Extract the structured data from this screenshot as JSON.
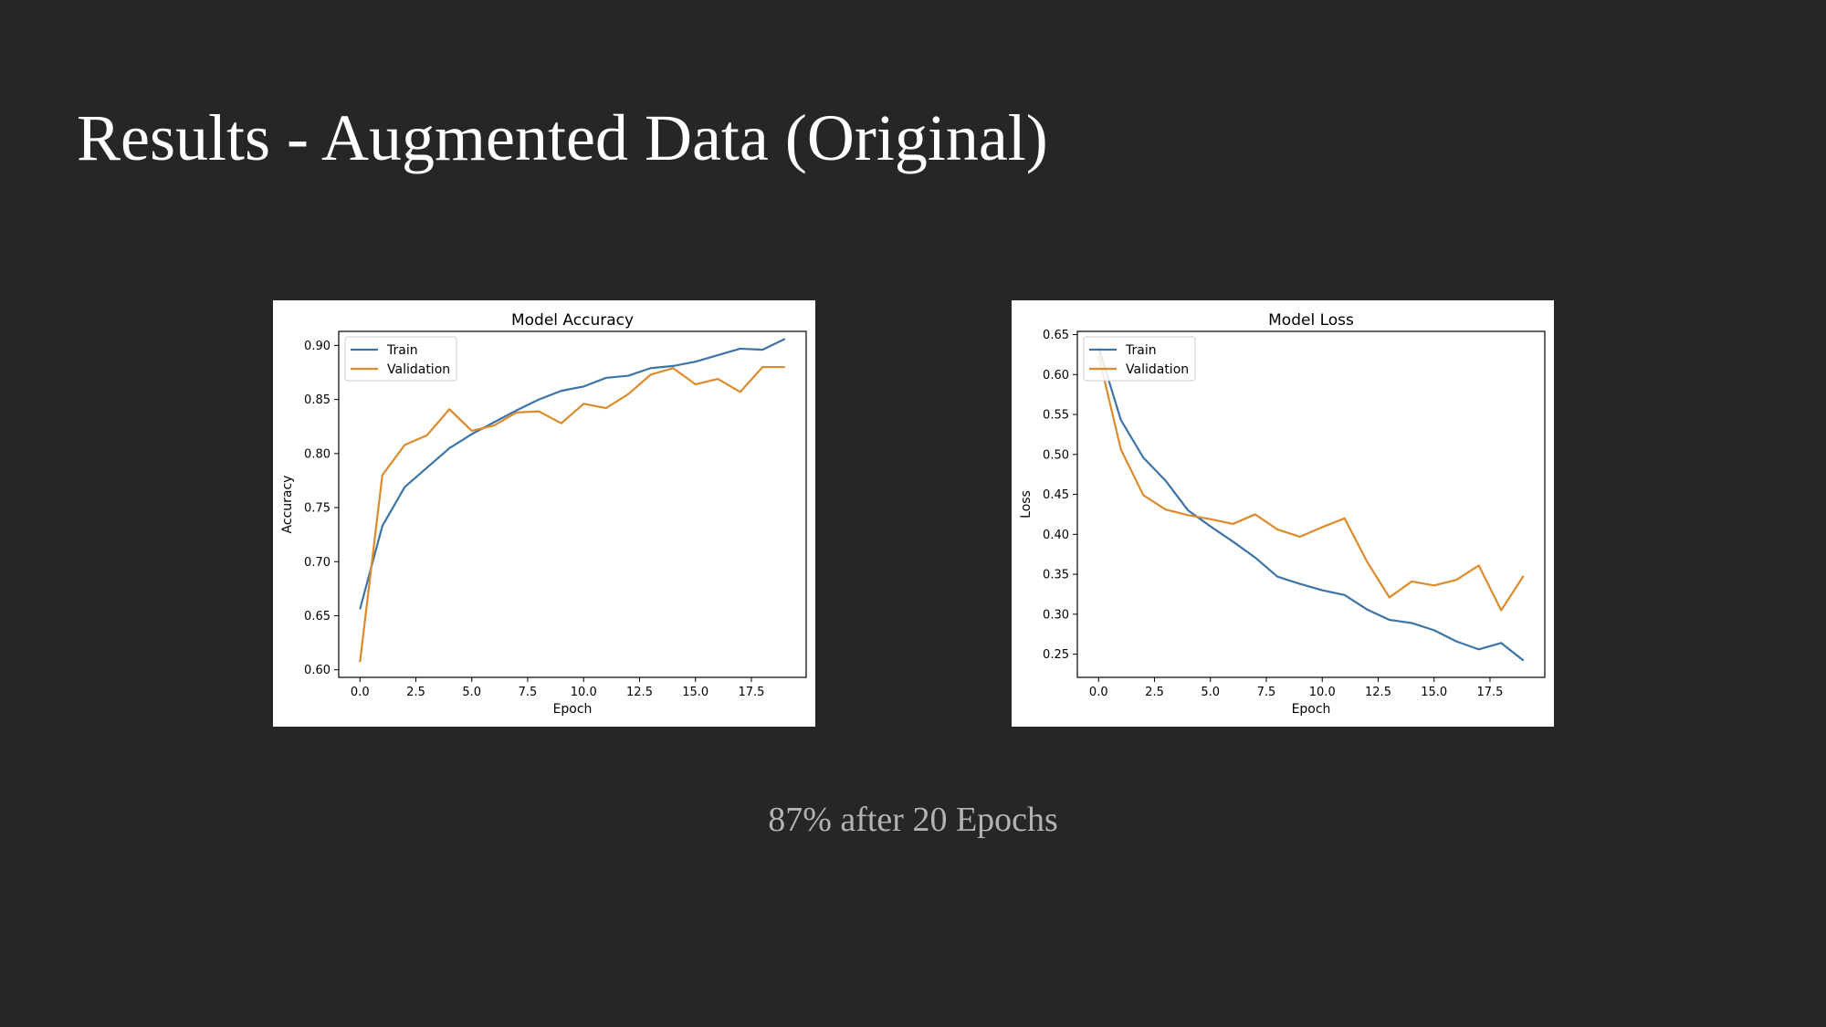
{
  "slide": {
    "title": "Results - Augmented Data (Original)",
    "caption": "87% after 20 Epochs"
  },
  "colors": {
    "background": "#262626",
    "train": "#3d74a8",
    "validation": "#dd8a2c"
  },
  "chart_data": [
    {
      "type": "line",
      "title": "Model Accuracy",
      "xlabel": "Epoch",
      "ylabel": "Accuracy",
      "xlim": [
        -0.95,
        19.95
      ],
      "ylim": [
        0.593,
        0.913
      ],
      "xticks": [
        0.0,
        2.5,
        5.0,
        7.5,
        10.0,
        12.5,
        15.0,
        17.5
      ],
      "xtick_labels": [
        "0.0",
        "2.5",
        "5.0",
        "7.5",
        "10.0",
        "12.5",
        "15.0",
        "17.5"
      ],
      "yticks": [
        0.6,
        0.65,
        0.7,
        0.75,
        0.8,
        0.85,
        0.9
      ],
      "ytick_labels": [
        "0.60",
        "0.65",
        "0.70",
        "0.75",
        "0.80",
        "0.85",
        "0.90"
      ],
      "legend": "upper-left",
      "grid": false,
      "x": [
        0,
        1,
        2,
        3,
        4,
        5,
        6,
        7,
        8,
        9,
        10,
        11,
        12,
        13,
        14,
        15,
        16,
        17,
        18,
        19
      ],
      "series": [
        {
          "name": "Train",
          "color": "#3d74a8",
          "values": [
            0.656,
            0.733,
            0.769,
            0.787,
            0.805,
            0.818,
            0.829,
            0.84,
            0.85,
            0.858,
            0.862,
            0.87,
            0.872,
            0.879,
            0.881,
            0.885,
            0.891,
            0.897,
            0.896,
            0.906
          ]
        },
        {
          "name": "Validation",
          "color": "#dd8a2c",
          "values": [
            0.607,
            0.78,
            0.808,
            0.817,
            0.841,
            0.821,
            0.826,
            0.838,
            0.839,
            0.828,
            0.846,
            0.842,
            0.855,
            0.873,
            0.879,
            0.864,
            0.869,
            0.857,
            0.88,
            0.88
          ]
        }
      ]
    },
    {
      "type": "line",
      "title": "Model Loss",
      "xlabel": "Epoch",
      "ylabel": "Loss",
      "xlim": [
        -0.95,
        19.95
      ],
      "ylim": [
        0.221,
        0.654
      ],
      "xticks": [
        0.0,
        2.5,
        5.0,
        7.5,
        10.0,
        12.5,
        15.0,
        17.5
      ],
      "xtick_labels": [
        "0.0",
        "2.5",
        "5.0",
        "7.5",
        "10.0",
        "12.5",
        "15.0",
        "17.5"
      ],
      "yticks": [
        0.25,
        0.3,
        0.35,
        0.4,
        0.45,
        0.5,
        0.55,
        0.6,
        0.65
      ],
      "ytick_labels": [
        "0.25",
        "0.30",
        "0.35",
        "0.40",
        "0.45",
        "0.50",
        "0.55",
        "0.60",
        "0.65"
      ],
      "legend": "upper-left",
      "grid": false,
      "x": [
        0,
        1,
        2,
        3,
        4,
        5,
        6,
        7,
        8,
        9,
        10,
        11,
        12,
        13,
        14,
        15,
        16,
        17,
        18,
        19
      ],
      "series": [
        {
          "name": "Train",
          "color": "#3d74a8",
          "values": [
            0.634,
            0.543,
            0.496,
            0.467,
            0.43,
            0.41,
            0.391,
            0.371,
            0.347,
            0.338,
            0.33,
            0.324,
            0.306,
            0.293,
            0.289,
            0.28,
            0.266,
            0.256,
            0.264,
            0.242
          ]
        },
        {
          "name": "Validation",
          "color": "#dd8a2c",
          "values": [
            0.624,
            0.506,
            0.449,
            0.431,
            0.424,
            0.419,
            0.413,
            0.425,
            0.406,
            0.397,
            0.409,
            0.42,
            0.366,
            0.321,
            0.341,
            0.336,
            0.343,
            0.361,
            0.305,
            0.348
          ]
        }
      ]
    }
  ]
}
